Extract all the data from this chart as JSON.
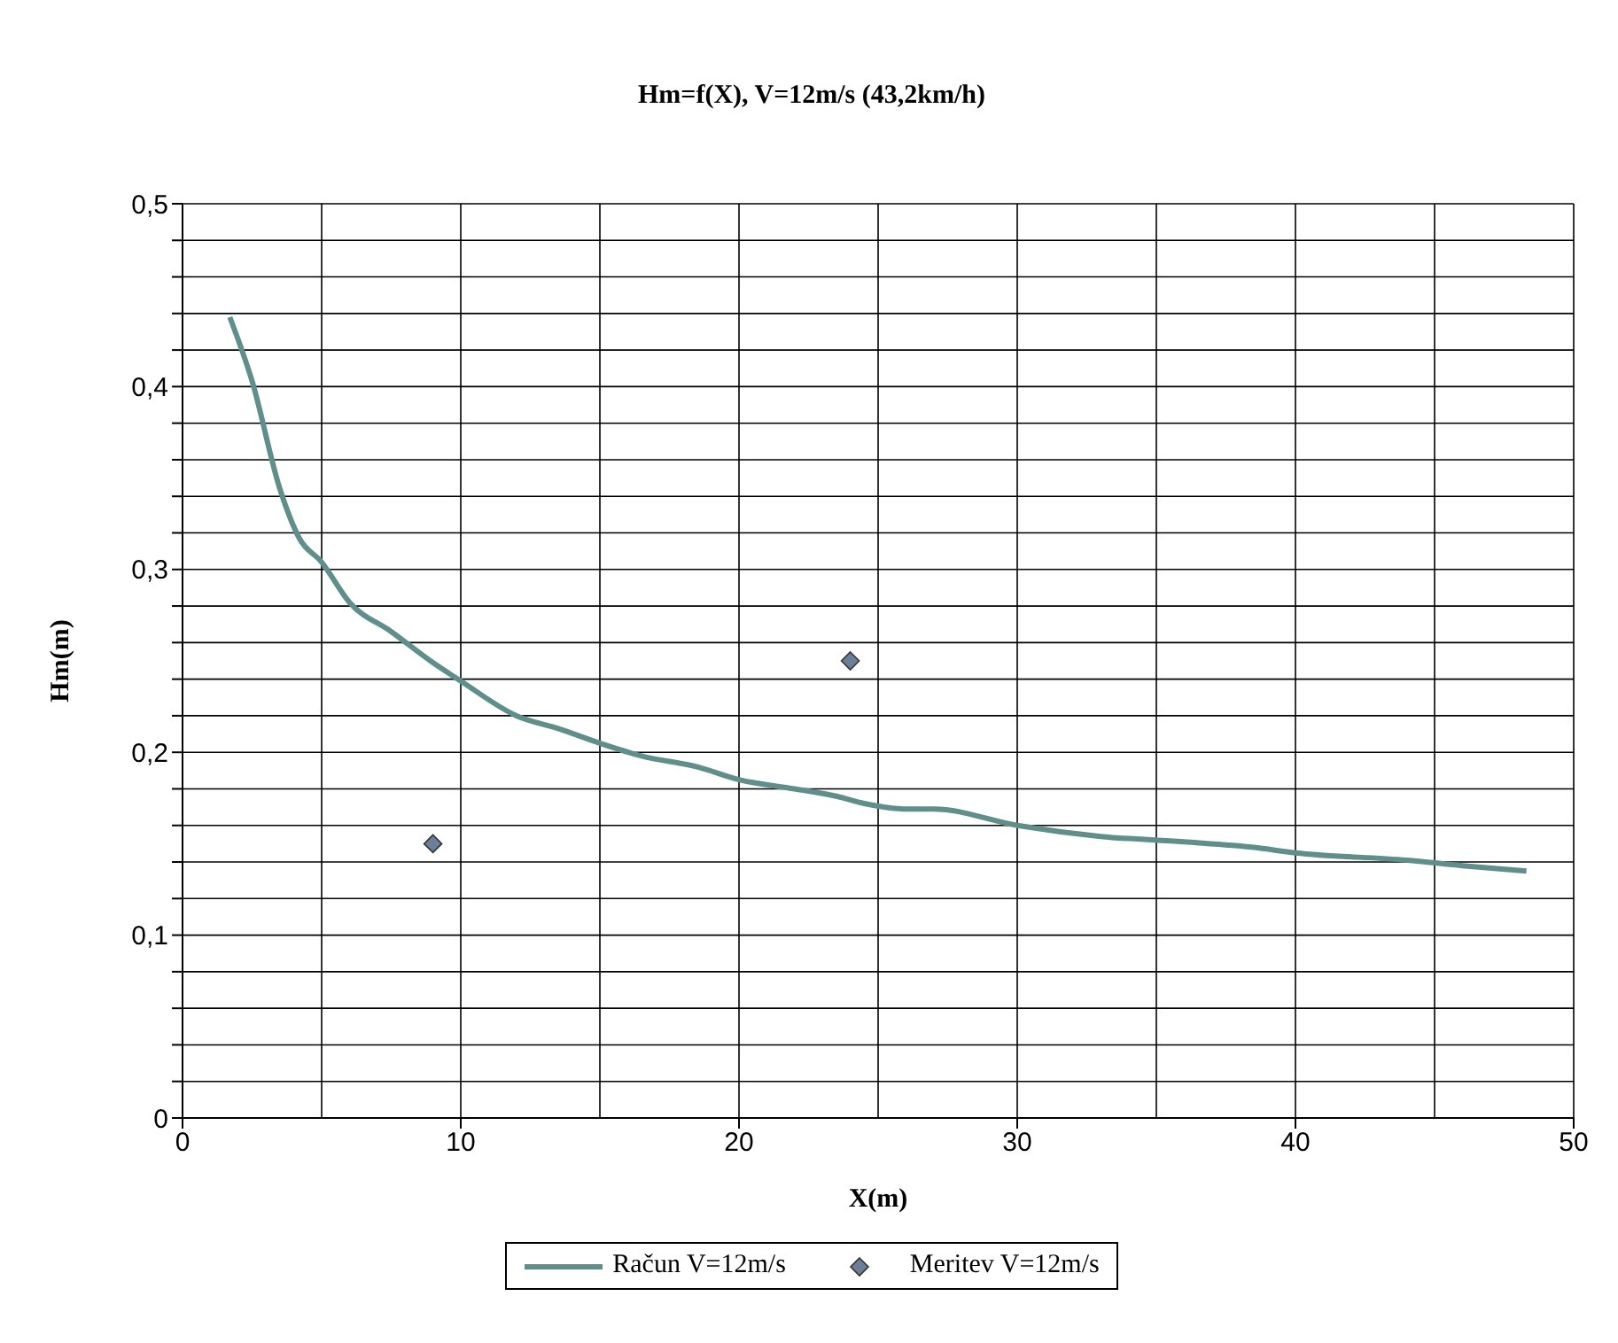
{
  "chart_data": {
    "type": "line",
    "title": "Hm=f(X), V=12m/s (43,2km/h)",
    "xlabel": "X(m)",
    "ylabel": "Hm(m)",
    "xlim": [
      0,
      50
    ],
    "xticks": [
      0,
      10,
      20,
      30,
      40,
      50
    ],
    "ylim": [
      0,
      0.5
    ],
    "yticks": [
      0,
      {
        "value": 0.02,
        "label": null
      },
      {
        "value": 0.04,
        "label": null
      },
      {
        "value": 0.06,
        "label": null
      },
      {
        "value": 0.08,
        "label": null
      },
      {
        "value": 0.1,
        "label": "0,1"
      },
      {
        "value": 0.12,
        "label": null
      },
      {
        "value": 0.14,
        "label": null
      },
      {
        "value": 0.16,
        "label": null
      },
      {
        "value": 0.18,
        "label": null
      },
      {
        "value": 0.2,
        "label": "0,2"
      },
      {
        "value": 0.22,
        "label": null
      },
      {
        "value": 0.24,
        "label": null
      },
      {
        "value": 0.26,
        "label": null
      },
      {
        "value": 0.28,
        "label": null
      },
      {
        "value": 0.3,
        "label": "0,3"
      },
      {
        "value": 0.32,
        "label": null
      },
      {
        "value": 0.34,
        "label": null
      },
      {
        "value": 0.36,
        "label": null
      },
      {
        "value": 0.38,
        "label": null
      },
      {
        "value": 0.4,
        "label": "0,4"
      },
      {
        "value": 0.42,
        "label": null
      },
      {
        "value": 0.44,
        "label": null
      },
      {
        "value": 0.46,
        "label": null
      },
      {
        "value": 0.48,
        "label": null
      },
      {
        "value": 0.5,
        "label": "0,5"
      }
    ],
    "grid": true,
    "legend": "bottom",
    "series": [
      {
        "name": "Račun V=12m/s",
        "color": "#5f8f8a",
        "marker": "none",
        "x": [
          1.7,
          2.5,
          3.5,
          4.2,
          5,
          6,
          7.5,
          9,
          10,
          12,
          13.5,
          15,
          16.5,
          18.5,
          20,
          22,
          23.5,
          24.5,
          26,
          27,
          30,
          33,
          36,
          38.5,
          40,
          44,
          46,
          48.3
        ],
        "values": [
          0.438,
          0.403,
          0.344,
          0.317,
          0.304,
          0.282,
          0.266,
          0.249,
          0.239,
          0.22,
          0.213,
          0.205,
          0.198,
          0.192,
          0.185,
          0.18,
          0.176,
          0.172,
          0.169,
          0.169,
          0.16,
          0.154,
          0.151,
          0.148,
          0.145,
          0.141,
          0.138,
          0.135
        ]
      },
      {
        "name": "Meritev V=12m/s",
        "type": "scatter",
        "color": "#6b7f99",
        "marker": "diamond",
        "x": [
          9,
          24
        ],
        "values": [
          0.15,
          0.25
        ]
      }
    ]
  }
}
